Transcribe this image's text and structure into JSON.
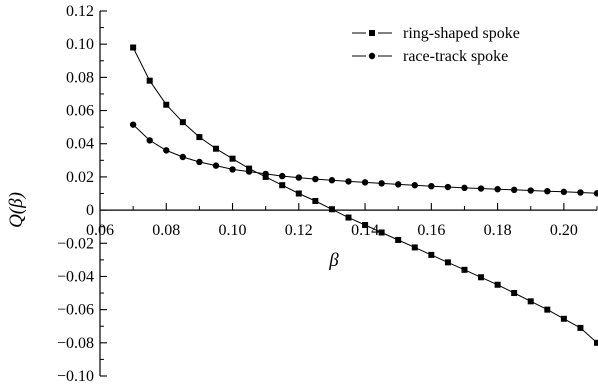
{
  "chart_data": {
    "type": "line",
    "title": "",
    "xlabel": "β",
    "ylabel": "Q(β)",
    "xlim": [
      0.06,
      0.21
    ],
    "ylim": [
      -0.1,
      0.12
    ],
    "x_ticks": [
      0.06,
      0.08,
      0.1,
      0.12,
      0.14,
      0.16,
      0.18,
      0.2
    ],
    "x_tick_labels": [
      "0.06",
      "0.08",
      "0.10",
      "0.12",
      "0.14",
      "0.16",
      "0.18",
      "0.20"
    ],
    "y_ticks": [
      -0.1,
      -0.08,
      -0.06,
      -0.04,
      -0.02,
      0,
      0.02,
      0.04,
      0.06,
      0.08,
      0.1,
      0.12
    ],
    "y_tick_labels": [
      "−0.10",
      "−0.08",
      "−0.06",
      "−0.04",
      "−0.02",
      "0",
      "0.02",
      "0.04",
      "0.06",
      "0.08",
      "0.10",
      "0.12"
    ],
    "grid": false,
    "legend_position": "top-right",
    "series": [
      {
        "name": "ring-shaped spoke",
        "marker": "square",
        "x": [
          0.07,
          0.075,
          0.08,
          0.085,
          0.09,
          0.095,
          0.1,
          0.105,
          0.11,
          0.115,
          0.12,
          0.125,
          0.13,
          0.135,
          0.14,
          0.145,
          0.15,
          0.155,
          0.16,
          0.165,
          0.17,
          0.175,
          0.18,
          0.185,
          0.19,
          0.195,
          0.2,
          0.205,
          0.21
        ],
        "y": [
          0.098,
          0.078,
          0.0635,
          0.053,
          0.044,
          0.037,
          0.031,
          0.025,
          0.02,
          0.015,
          0.01,
          0.0055,
          0.0005,
          -0.0045,
          -0.009,
          -0.0135,
          -0.018,
          -0.0225,
          -0.027,
          -0.0315,
          -0.036,
          -0.0405,
          -0.045,
          -0.05,
          -0.055,
          -0.06,
          -0.0655,
          -0.071,
          -0.08
        ]
      },
      {
        "name": "race-track spoke",
        "marker": "circle",
        "x": [
          0.07,
          0.075,
          0.08,
          0.085,
          0.09,
          0.095,
          0.1,
          0.105,
          0.11,
          0.115,
          0.12,
          0.125,
          0.13,
          0.135,
          0.14,
          0.145,
          0.15,
          0.155,
          0.16,
          0.165,
          0.17,
          0.175,
          0.18,
          0.185,
          0.19,
          0.195,
          0.2,
          0.205,
          0.21
        ],
        "y": [
          0.0515,
          0.042,
          0.036,
          0.032,
          0.029,
          0.0268,
          0.0245,
          0.0232,
          0.0218,
          0.0205,
          0.0196,
          0.0187,
          0.018,
          0.0173,
          0.0167,
          0.0161,
          0.0155,
          0.015,
          0.0144,
          0.0139,
          0.0134,
          0.013,
          0.0126,
          0.0122,
          0.0118,
          0.0114,
          0.011,
          0.0106,
          0.0101
        ]
      }
    ]
  }
}
